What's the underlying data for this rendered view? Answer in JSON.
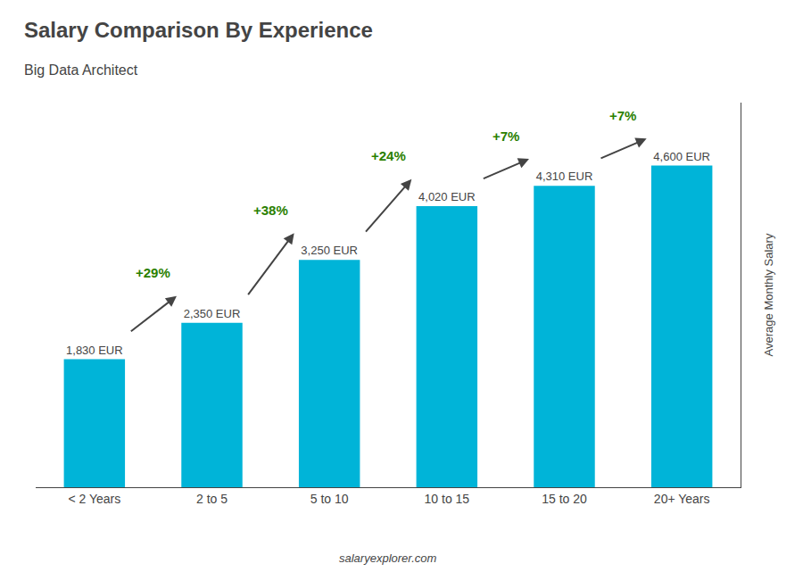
{
  "chart_data": {
    "type": "bar",
    "title": "Salary Comparison By Experience",
    "subtitle": "Big Data Architect",
    "categories": [
      "< 2 Years",
      "2 to 5",
      "5 to 10",
      "10 to 15",
      "15 to 20",
      "20+ Years"
    ],
    "values": [
      1830,
      2350,
      3250,
      4020,
      4310,
      4600
    ],
    "value_labels": [
      "1,830 EUR",
      "2,350 EUR",
      "3,250 EUR",
      "4,020 EUR",
      "4,310 EUR",
      "4,600 EUR"
    ],
    "data_labels": true,
    "annotations": [
      "+29%",
      "+38%",
      "+24%",
      "+7%",
      "+7%"
    ],
    "y_label": "Average Monthly Salary",
    "source": "salaryexplorer.com",
    "color": "#00b4d8",
    "ylim": [
      0,
      5500
    ],
    "yticks": [],
    "tick_labels": "x",
    "grid": false
  }
}
